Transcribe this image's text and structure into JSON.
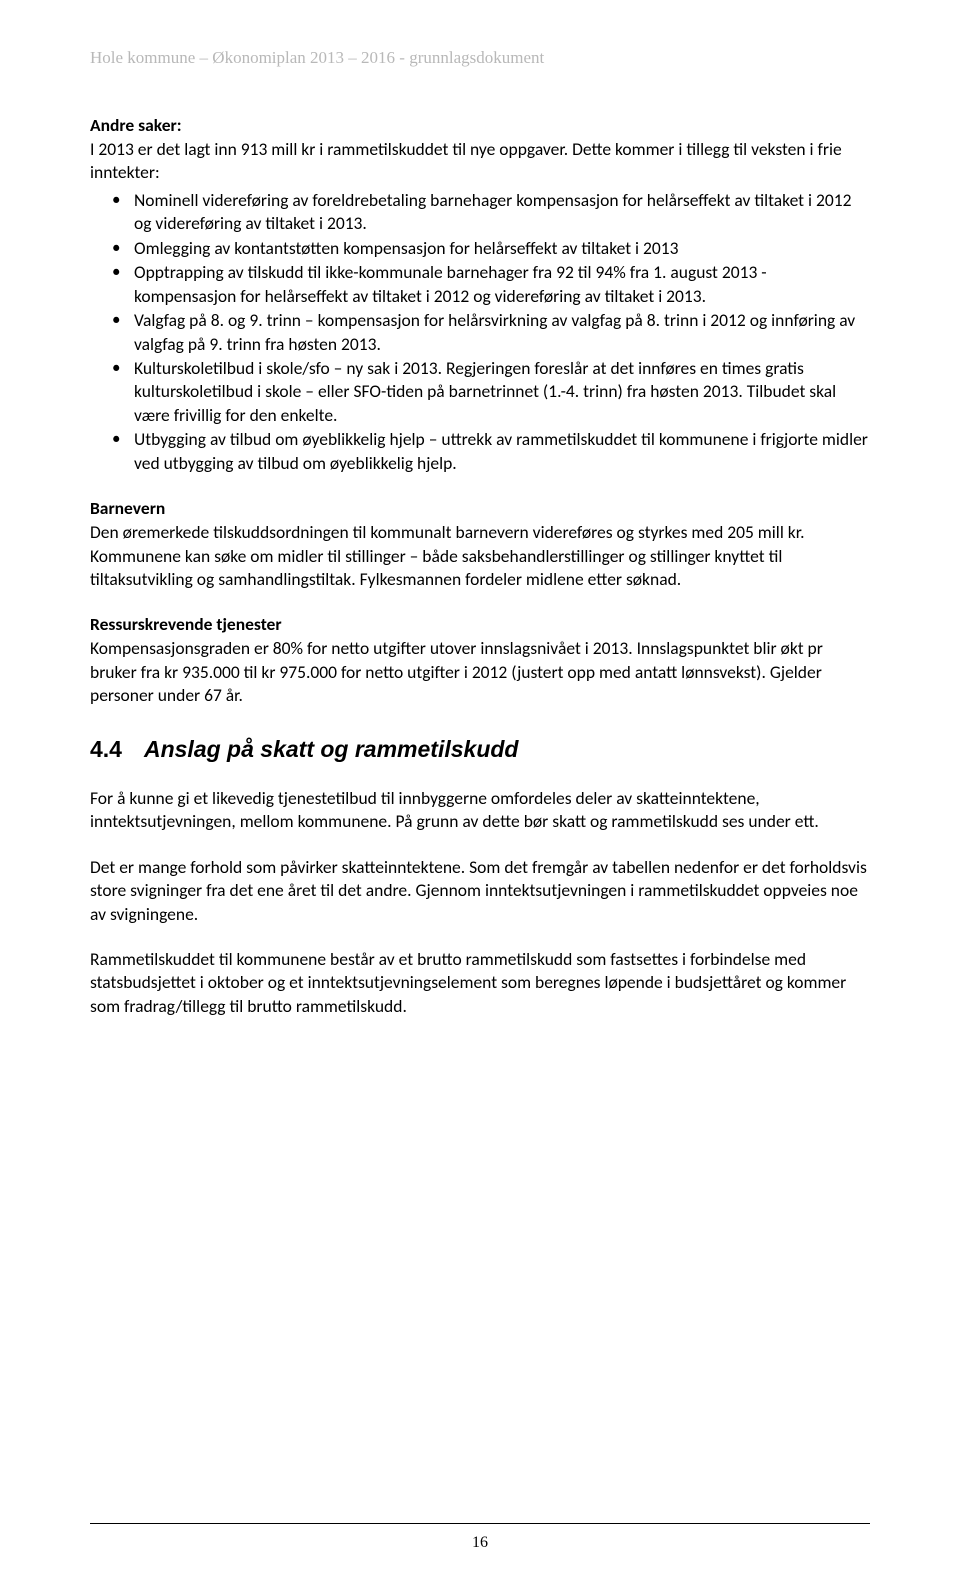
{
  "header": "Hole kommune – Økonomiplan 2013 – 2016 - grunnlagsdokument",
  "andre_saker": {
    "heading": "Andre saker:",
    "intro": "I 2013 er det lagt inn 913 mill kr i rammetilskuddet til nye oppgaver. Dette kommer i tillegg til veksten i frie inntekter:",
    "bullets": [
      "Nominell videreføring av foreldrebetaling barnehager kompensasjon for helårseffekt av tiltaket i 2012 og videreføring av tiltaket i 2013.",
      "Omlegging av kontantstøtten kompensasjon for helårseffekt av tiltaket i 2013",
      "Opptrapping av tilskudd til ikke-kommunale barnehager fra 92 til 94% fra 1. august 2013 - kompensasjon for helårseffekt av tiltaket i 2012 og videreføring av tiltaket i 2013.",
      "Valgfag på 8. og 9. trinn – kompensasjon for helårsvirkning av valgfag på 8. trinn i 2012 og innføring av valgfag på 9. trinn fra høsten 2013.",
      "Kulturskoletilbud i skole/sfo – ny sak i 2013. Regjeringen foreslår at det innføres en times gratis kulturskoletilbud i skole – eller SFO-tiden på barnetrinnet (1.-4. trinn) fra høsten 2013. Tilbudet skal være frivillig for den enkelte.",
      "Utbygging av tilbud om øyeblikkelig hjelp – uttrekk av rammetilskuddet til kommunene i frigjorte midler ved utbygging av tilbud om øyeblikkelig hjelp."
    ]
  },
  "barnevern": {
    "heading": "Barnevern",
    "text": "Den øremerkede tilskuddsordningen til kommunalt barnevern videreføres og styrkes med 205 mill kr. Kommunene kan søke om midler til stillinger – både saksbehandlerstillinger og stillinger knyttet til tiltaksutvikling og samhandlingstiltak. Fylkesmannen fordeler midlene etter søknad."
  },
  "ressurs": {
    "heading": "Ressurskrevende tjenester",
    "text": "Kompensasjonsgraden er 80% for netto utgifter utover innslagsnivået i 2013. Innslagspunktet blir økt pr bruker fra kr 935.000 til kr 975.000 for netto utgifter i 2012 (justert opp med antatt lønnsvekst). Gjelder personer under 67 år."
  },
  "section44": {
    "number": "4.4",
    "title": "Anslag på skatt og rammetilskudd",
    "p1": "For å kunne gi et likevedig tjenestetilbud til innbyggerne omfordeles deler av skatteinntektene, inntektsutjevningen, mellom kommunene. På grunn av dette bør skatt og rammetilskudd ses under ett.",
    "p2": "Det er mange forhold som påvirker skatteinntektene. Som det fremgår av tabellen nedenfor er det forholdsvis store svigninger fra det ene året til det andre. Gjennom inntektsutjevningen i rammetilskuddet oppveies noe av svigningene.",
    "p3": "Rammetilskuddet til kommunene består av et brutto rammetilskudd som fastsettes i forbindelse med statsbudsjettet i oktober og et inntektsutjevningselement som beregnes løpende i budsjettåret og kommer som fradrag/tillegg til brutto rammetilskudd."
  },
  "page_number": "16"
}
